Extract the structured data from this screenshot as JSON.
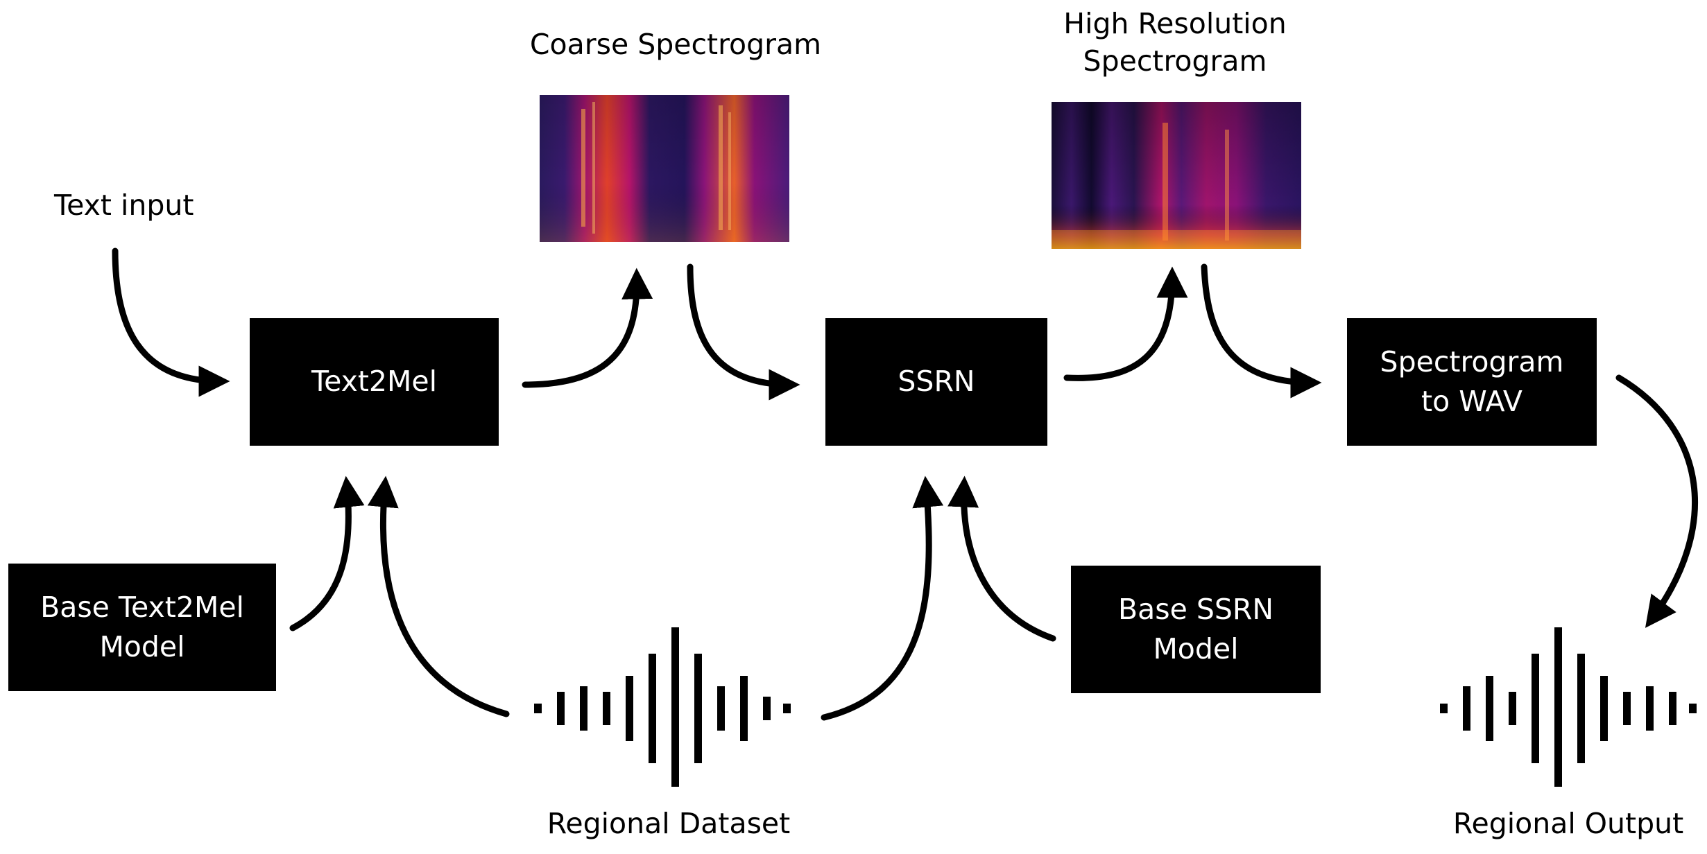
{
  "labels": {
    "text_input": "Text input",
    "coarse_spectrogram": "Coarse Spectrogram",
    "high_res_spectrogram_line1": "High Resolution",
    "high_res_spectrogram_line2": "Spectrogram",
    "regional_dataset": "Regional Dataset",
    "regional_output": "Regional Output"
  },
  "boxes": {
    "text2mel": "Text2Mel",
    "ssrn": "SSRN",
    "spec_to_wav": "Spectrogram\nto WAV",
    "base_text2mel": "Base Text2Mel\nModel",
    "base_ssrn": "Base SSRN\nModel"
  },
  "colors": {
    "box_fill": "#000000",
    "box_text": "#ffffff",
    "spectrogram_low": "#1c0f4f",
    "spectrogram_mid": "#c0127a",
    "spectrogram_high": "#ffb000"
  },
  "icons": {
    "waveform_dataset": "waveform-icon",
    "waveform_output": "waveform-icon"
  }
}
